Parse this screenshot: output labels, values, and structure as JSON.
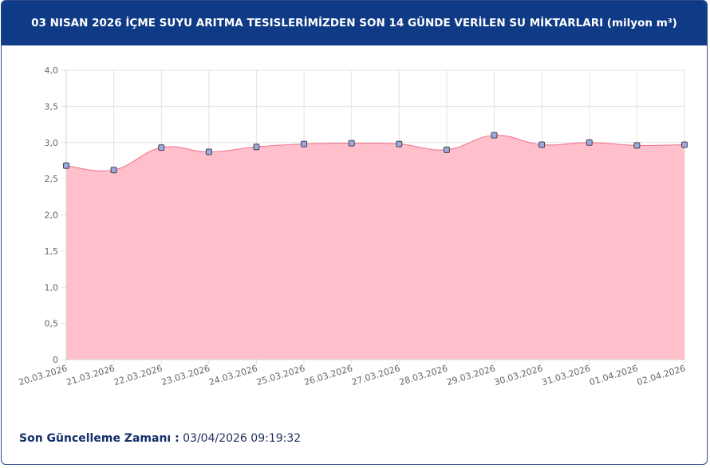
{
  "header": {
    "title": "03 NISAN 2026 İÇME SUYU ARITMA TESISLERİMİZDEN SON 14 GÜNDE VERİLEN SU MİKTARLARI (milyon m³)"
  },
  "footer": {
    "label": "Son Güncelleme Zamanı :",
    "value": "03/04/2026 09:19:32"
  },
  "chart_data": {
    "type": "area",
    "categories": [
      "20.03.2026",
      "21.03.2026",
      "22.03.2026",
      "23.03.2026",
      "24.03.2026",
      "25.03.2026",
      "26.03.2026",
      "27.03.2026",
      "28.03.2026",
      "29.03.2026",
      "30.03.2026",
      "31.03.2026",
      "01.04.2026",
      "02.04.2026"
    ],
    "series": [
      {
        "values": [
          2.68,
          2.62,
          2.93,
          2.87,
          2.94,
          2.98,
          2.99,
          2.98,
          2.9,
          3.1,
          2.97,
          3.0,
          2.96,
          2.97
        ]
      }
    ],
    "ylim": [
      0,
      4
    ],
    "yticks": [
      "0",
      "0,5",
      "1,0",
      "1,5",
      "2,0",
      "2,5",
      "3,0",
      "3,5",
      "4,0"
    ],
    "grid": true,
    "colors": {
      "fill": "#ffc0cc",
      "line": "#f07f96",
      "point_fill": "#9aa8e0",
      "point_stroke": "#444444"
    }
  }
}
